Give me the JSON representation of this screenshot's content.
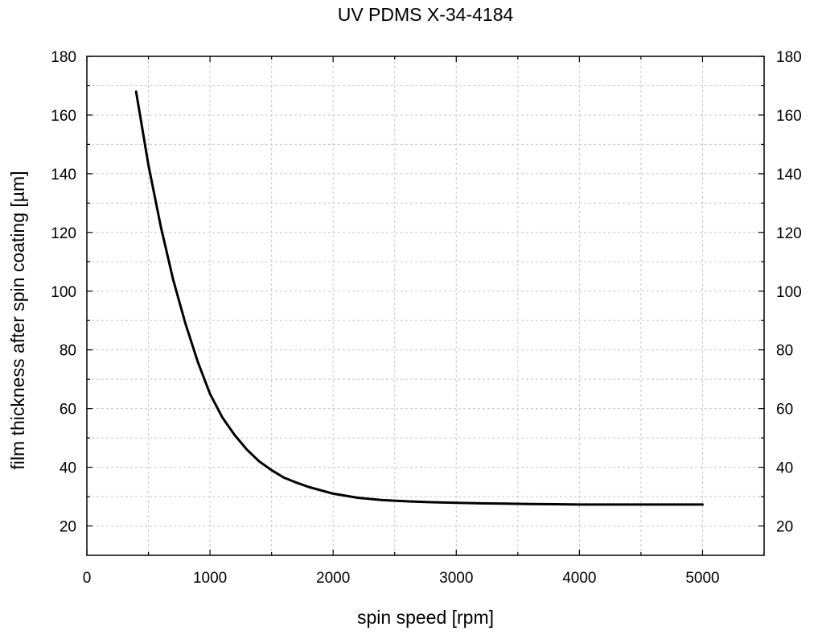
{
  "chart_data": {
    "type": "line",
    "title": "UV PDMS X-34-4184",
    "xlabel": "spin speed [rpm]",
    "ylabel": "film thickness after spin coating [µm]",
    "xlim": [
      0,
      5500
    ],
    "ylim": [
      10,
      180
    ],
    "x_ticks": [
      0,
      1000,
      2000,
      3000,
      4000,
      5000
    ],
    "y_ticks": [
      20,
      40,
      60,
      80,
      100,
      120,
      140,
      160,
      180
    ],
    "y2_ticks": [
      20,
      40,
      60,
      80,
      100,
      120,
      140,
      160,
      180
    ],
    "grid": true,
    "legend": "none",
    "line_color": "#000000",
    "series": [
      {
        "x": [
          400,
          500,
          600,
          700,
          800,
          900,
          1000,
          1100,
          1200,
          1300,
          1400,
          1500,
          1600,
          1700,
          1800,
          2000,
          2200,
          2400,
          2600,
          2800,
          3000,
          3200,
          3400,
          3600,
          3800,
          4000,
          4200,
          4400,
          4600,
          4800,
          5000
        ],
        "values": [
          168,
          143,
          122,
          104,
          89,
          76,
          65,
          57,
          51,
          46,
          42,
          39,
          36.5,
          34.8,
          33.3,
          31,
          29.6,
          28.8,
          28.4,
          28.1,
          27.9,
          27.7,
          27.6,
          27.5,
          27.4,
          27.3,
          27.3,
          27.3,
          27.3,
          27.3,
          27.3
        ]
      }
    ]
  }
}
